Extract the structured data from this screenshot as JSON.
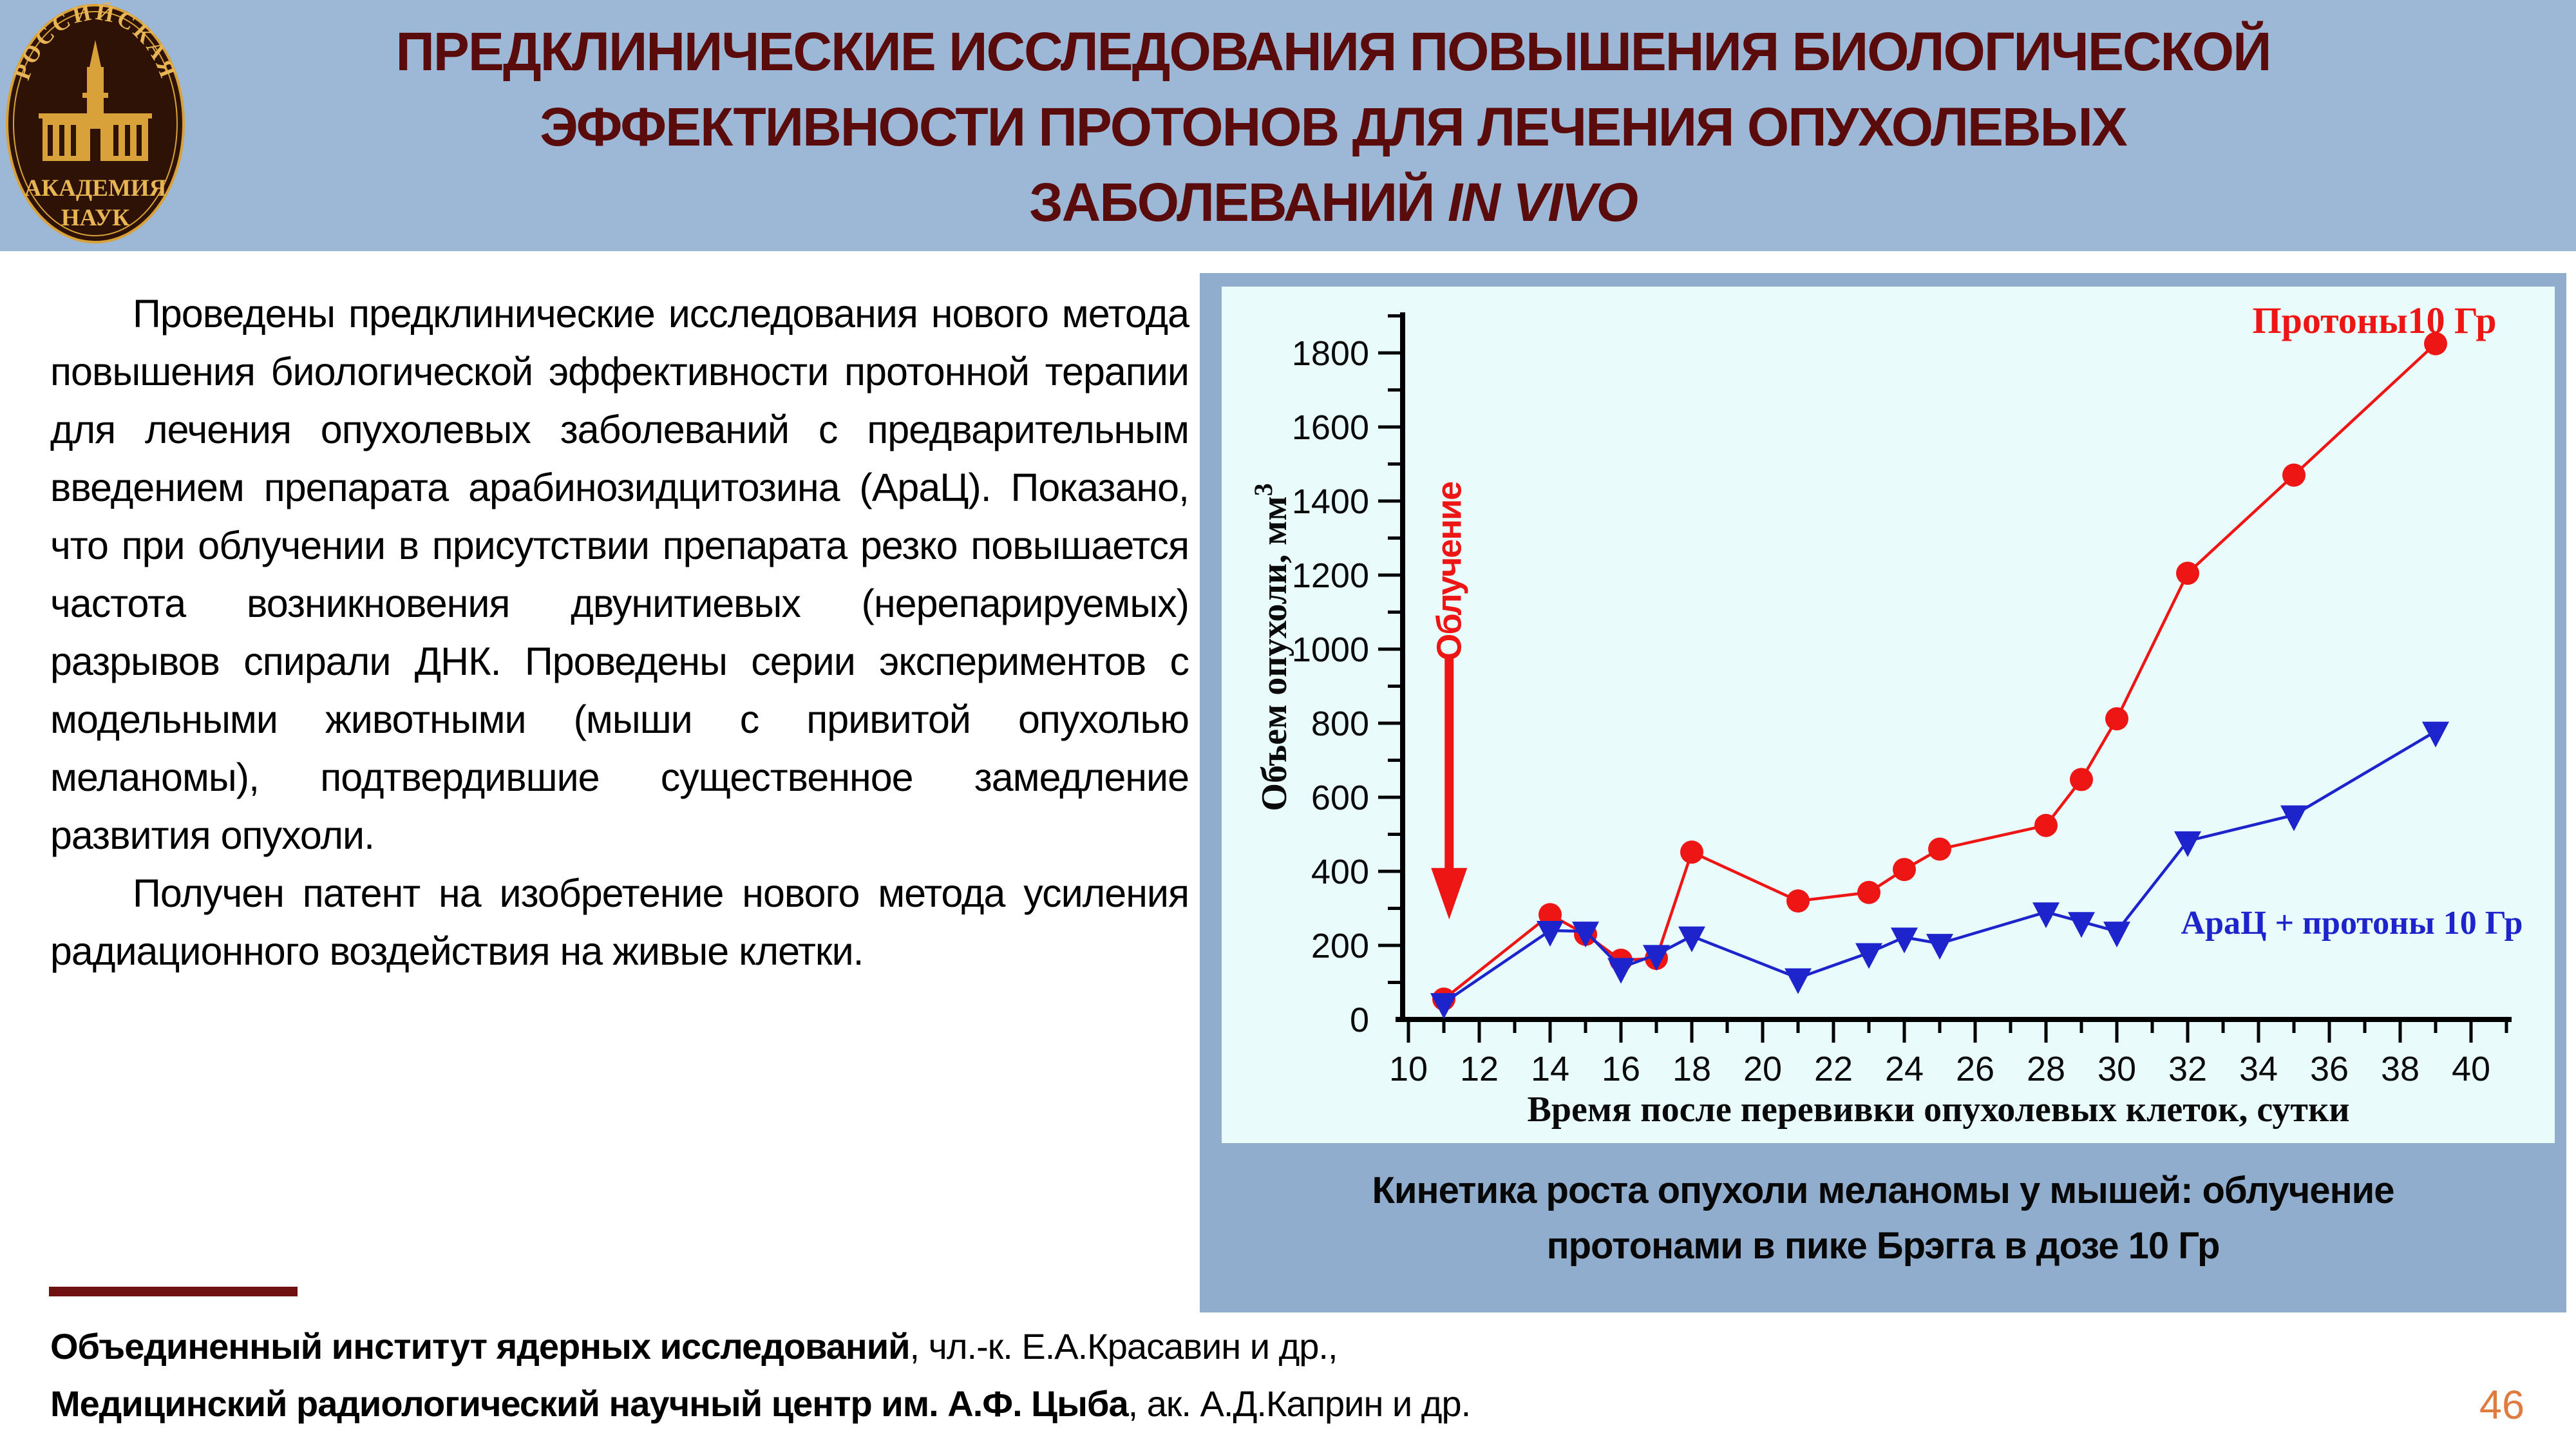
{
  "slide": {
    "title": {
      "lines": [
        "ПРЕДКЛИНИЧЕСКИЕ ИССЛЕДОВАНИЯ ПОВЫШЕНИЯ БИОЛОГИЧЕСКОЙ",
        "ЭФФЕКТИВНОСТИ ПРОТОНОВ ДЛЯ ЛЕЧЕНИЯ ОПУХОЛЕВЫХ",
        "ЗАБОЛЕВАНИЙ"
      ],
      "italic": "IN VIVO"
    },
    "page_number": "46"
  },
  "logo": {
    "arc_text": "РОССИЙСКАЯ",
    "line1": "АКАДЕМИЯ",
    "line2": "НАУК"
  },
  "body": {
    "paragraph1": "Проведены предклинические исследования нового метода повышения биологической эффективности протонной терапии для лечения опухолевых заболеваний с предварительным введением препарата арабинозидцитозина (АраЦ). Показано, что при облучении в присутствии препарата резко повышается частота возникновения двунитиевых (нерепарируемых) разрывов спирали ДНК. Проведены серии экспериментов с модельными животными (мыши с привитой опухолью меланомы), подтвердившие существенное замедление развития опухоли.",
    "paragraph2": "Получен патент на изобретение нового метода усиления радиационного воздействия на живые клетки."
  },
  "figure": {
    "caption_line1": "Кинетика роста опухоли меланомы у мышей: облучение",
    "caption_line2": "протонами в пике Брэгга в дозе 10 Гр"
  },
  "footer": {
    "line1_bold": "Объединенный институт ядерных исследований",
    "line1_rest": ", чл.-к. Е.А.Красавин и др.,",
    "line2_bold": "Медицинский радиологический научный центр им. А.Ф. Цыба",
    "line2_rest": ", ак. А.Д.Каприн и др."
  },
  "colors": {
    "header_blue": "#9db8d6",
    "panel_blue": "#91adce",
    "chart_bg": "#e9fcfb",
    "title_maroon": "#5a0b0b",
    "series_red": "#ee1515",
    "series_blue": "#1d24cc",
    "page_number_orange": "#e07b3f",
    "divider_maroon": "#701111"
  },
  "chart_data": {
    "type": "line",
    "title": "",
    "xlabel": "Время после перевивки опухолевых клеток, сутки",
    "ylabel_base": "Объем опухоли, мм",
    "ylabel_sup": "3",
    "xlim": [
      10,
      41
    ],
    "ylim": [
      0,
      1900
    ],
    "xticks": [
      10,
      12,
      14,
      16,
      18,
      20,
      22,
      24,
      26,
      28,
      30,
      32,
      34,
      36,
      38,
      40
    ],
    "yticks": [
      0,
      200,
      400,
      600,
      800,
      1000,
      1200,
      1400,
      1600,
      1800
    ],
    "grid": false,
    "legend_position": "inside",
    "series": [
      {
        "name": "Протоны10 Гр",
        "color": "#ee1515",
        "marker": "circle",
        "points": [
          [
            11,
            55
          ],
          [
            14,
            283
          ],
          [
            15,
            230
          ],
          [
            16,
            160
          ],
          [
            17,
            165
          ],
          [
            18,
            452
          ],
          [
            21,
            320
          ],
          [
            23,
            343
          ],
          [
            24,
            405
          ],
          [
            25,
            460
          ],
          [
            28,
            524
          ],
          [
            29,
            648
          ],
          [
            30,
            812
          ],
          [
            32,
            1205
          ],
          [
            35,
            1470
          ],
          [
            39,
            1825
          ]
        ]
      },
      {
        "name": "АраЦ + протоны 10 Гр",
        "color": "#1d24cc",
        "marker": "triangle-down",
        "points": [
          [
            11,
            45
          ],
          [
            14,
            240
          ],
          [
            15,
            238
          ],
          [
            16,
            140
          ],
          [
            17,
            175
          ],
          [
            18,
            225
          ],
          [
            21,
            112
          ],
          [
            23,
            180
          ],
          [
            24,
            222
          ],
          [
            25,
            205
          ],
          [
            28,
            290
          ],
          [
            29,
            264
          ],
          [
            30,
            238
          ],
          [
            32,
            482
          ],
          [
            35,
            552
          ],
          [
            39,
            778
          ]
        ]
      }
    ],
    "annotation": {
      "label": "Облучение",
      "x_day": 11.15,
      "arrow_tail_value": 975,
      "arrow_tip_value": 270,
      "label_center_value": 1210
    }
  }
}
